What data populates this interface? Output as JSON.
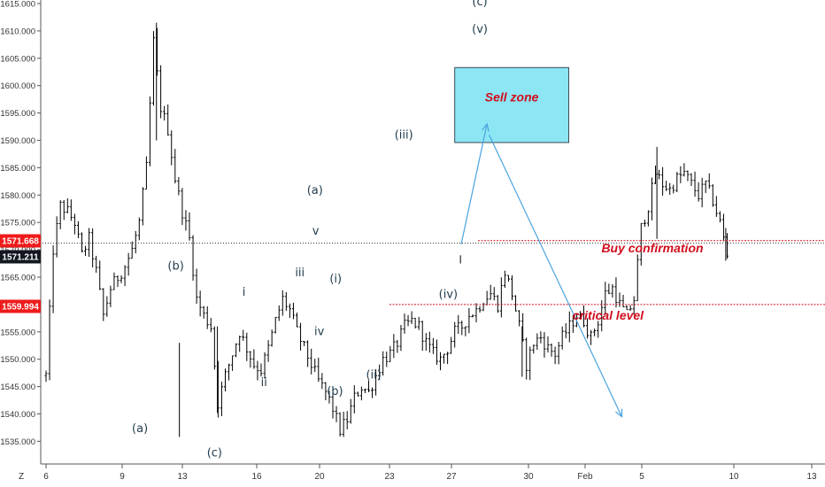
{
  "chart_data": {
    "type": "candlestick",
    "y_axis": {
      "ticks": [
        "1615.000",
        "1610.000",
        "1605.000",
        "1600.000",
        "1595.000",
        "1590.000",
        "1585.000",
        "1580.000",
        "1575.000",
        "1570.000",
        "1565.000",
        "1560.000",
        "1555.000",
        "1550.000",
        "1545.000",
        "1540.000",
        "1535.000"
      ],
      "range": [
        1531.5,
        1617.0
      ]
    },
    "x_axis": {
      "ticks": [
        "6",
        "9",
        "13",
        "16",
        "20",
        "23",
        "27",
        "30",
        "Feb",
        "5",
        "10",
        "13"
      ],
      "corner_label": "Z"
    },
    "price_tags": [
      {
        "value": 1571.668,
        "label": "1571.668",
        "color": "#ef1b1b"
      },
      {
        "value": 1571.211,
        "label": "1571.211",
        "color": "#131722"
      },
      {
        "value": 1559.994,
        "label": "1559.994",
        "color": "#ef1b1b"
      }
    ],
    "levels": {
      "last_price": 1571.211,
      "buy_confirmation": 1571.668,
      "critical_level": 1559.994
    },
    "price_path": [
      [
        0,
        1547
      ],
      [
        1,
        1570
      ],
      [
        2,
        1578
      ],
      [
        3,
        1577
      ],
      [
        4,
        1575
      ],
      [
        5,
        1569
      ],
      [
        6,
        1572
      ],
      [
        7,
        1566
      ],
      [
        8,
        1558
      ],
      [
        9,
        1563
      ],
      [
        10,
        1565
      ],
      [
        11,
        1567
      ],
      [
        12,
        1570
      ],
      [
        13,
        1575
      ],
      [
        14,
        1585
      ],
      [
        15,
        1608
      ],
      [
        16,
        1596
      ],
      [
        17,
        1592
      ],
      [
        18,
        1583
      ],
      [
        19,
        1577
      ],
      [
        20,
        1572
      ],
      [
        21,
        1561
      ],
      [
        22,
        1558
      ],
      [
        23,
        1556
      ],
      [
        24,
        1542
      ],
      [
        25,
        1547
      ],
      [
        26,
        1551
      ],
      [
        27,
        1555
      ],
      [
        28,
        1552
      ],
      [
        29,
        1549
      ],
      [
        30,
        1548
      ],
      [
        31,
        1552
      ],
      [
        32,
        1557
      ],
      [
        33,
        1561
      ],
      [
        34,
        1559
      ],
      [
        35,
        1555
      ],
      [
        36,
        1552
      ],
      [
        37,
        1549
      ],
      [
        38,
        1546
      ],
      [
        39,
        1544
      ],
      [
        40,
        1541
      ],
      [
        41,
        1537
      ],
      [
        42,
        1539
      ],
      [
        43,
        1543
      ],
      [
        44,
        1545
      ],
      [
        45,
        1544
      ],
      [
        46,
        1547
      ],
      [
        47,
        1550
      ],
      [
        48,
        1551
      ],
      [
        49,
        1553
      ],
      [
        50,
        1556
      ],
      [
        51,
        1557
      ],
      [
        52,
        1556
      ],
      [
        53,
        1553
      ],
      [
        54,
        1551
      ],
      [
        55,
        1550
      ],
      [
        56,
        1552
      ],
      [
        57,
        1555
      ],
      [
        58,
        1556
      ],
      [
        59,
        1558
      ],
      [
        60,
        1559
      ],
      [
        61,
        1561
      ],
      [
        62,
        1562
      ],
      [
        63,
        1560
      ],
      [
        64,
        1566
      ],
      [
        65,
        1562
      ],
      [
        66,
        1556
      ],
      [
        67,
        1549
      ],
      [
        68,
        1553
      ],
      [
        69,
        1554
      ],
      [
        70,
        1552
      ],
      [
        71,
        1551
      ],
      [
        72,
        1554
      ],
      [
        73,
        1556
      ],
      [
        74,
        1558
      ],
      [
        75,
        1557
      ],
      [
        76,
        1554
      ],
      [
        77,
        1557
      ],
      [
        78,
        1562
      ],
      [
        79,
        1563
      ],
      [
        80,
        1560
      ],
      [
        81,
        1558
      ],
      [
        82,
        1561
      ],
      [
        83,
        1574
      ],
      [
        84,
        1578
      ],
      [
        85,
        1584
      ],
      [
        86,
        1582
      ],
      [
        87,
        1581
      ],
      [
        88,
        1583
      ],
      [
        89,
        1584
      ],
      [
        90,
        1582
      ],
      [
        91,
        1580
      ],
      [
        92,
        1582
      ],
      [
        93,
        1579
      ],
      [
        94,
        1575
      ],
      [
        95,
        1569
      ]
    ],
    "annotations": [
      {
        "text": "(c)",
        "x": 60.5,
        "y": 1614.7
      },
      {
        "text": "(v)",
        "x": 60.5,
        "y": 1609.7
      },
      {
        "text": "(iii)",
        "x": 49.9,
        "y": 1590.3
      },
      {
        "text": "(a)",
        "x": 37.5,
        "y": 1580.2
      },
      {
        "text": "v",
        "x": 37.6,
        "y": 1572.8
      },
      {
        "text": "(b)",
        "x": 18.1,
        "y": 1566.4
      },
      {
        "text": "iii",
        "x": 35.4,
        "y": 1565.2
      },
      {
        "text": "(i)",
        "x": 40.4,
        "y": 1564.0
      },
      {
        "text": "i",
        "x": 27.6,
        "y": 1561.6
      },
      {
        "text": "(iv)",
        "x": 56.1,
        "y": 1561.2
      },
      {
        "text": "iv",
        "x": 38.1,
        "y": 1554.4
      },
      {
        "text": "(ii)",
        "x": 45.7,
        "y": 1546.5
      },
      {
        "text": "ii",
        "x": 30.4,
        "y": 1545.1
      },
      {
        "text": "(b)",
        "x": 40.3,
        "y": 1543.5
      },
      {
        "text": "(a)",
        "x": 13.1,
        "y": 1536.7
      },
      {
        "text": "(c)",
        "x": 23.5,
        "y": 1532.2
      }
    ],
    "notes": {
      "sell_zone": "Sell zone",
      "buy_confirmation": "Buy confirmation",
      "critical_level": "critical level"
    },
    "sell_zone_box": {
      "x_range": [
        57.0,
        72.9
      ],
      "y_range": [
        1589.6,
        1603.3
      ]
    },
    "projection_path": [
      [
        57.9,
        1571.0
      ],
      [
        61.5,
        1593.0
      ],
      [
        80.3,
        1539.5
      ]
    ],
    "projection_start": [
      61.8,
      1591.0
    ],
    "colors": {
      "candles": "#000000",
      "sell_zone_fill": "#8de6f4",
      "sell_zone_border": "#3a4a55",
      "arrows": "#4aa3e0",
      "annotation_red": "#d10e1e",
      "level_red": "#d10e1e",
      "label_dark": "#1f3b4d"
    }
  }
}
